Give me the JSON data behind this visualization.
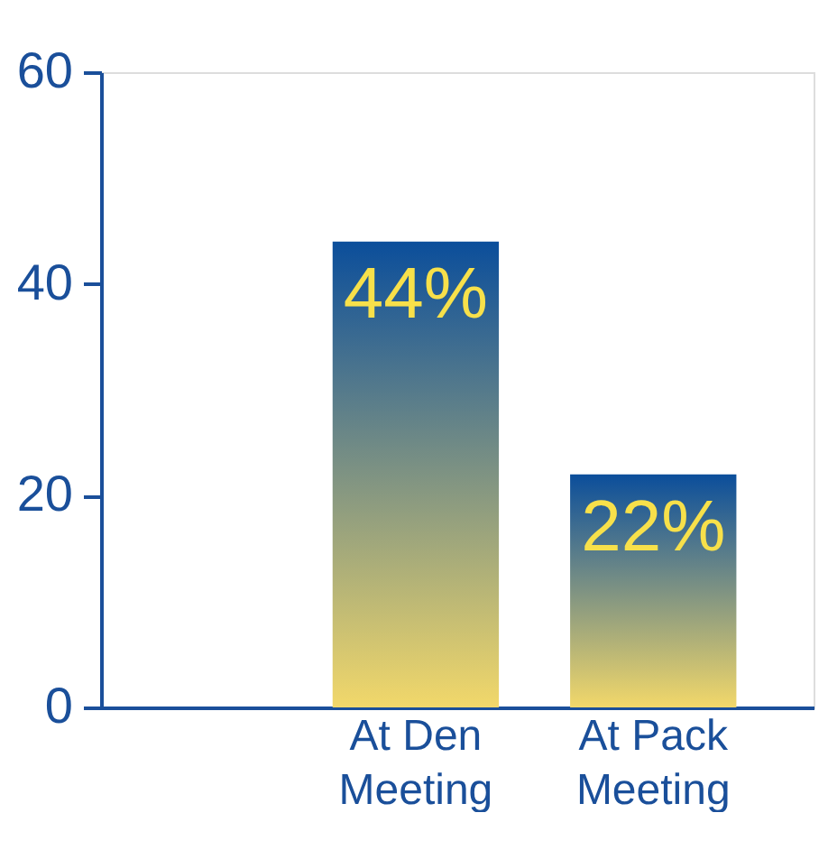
{
  "chart_data": {
    "type": "bar",
    "categories": [
      "At Den Meeting",
      "At Pack Meeting"
    ],
    "values": [
      44,
      22
    ],
    "value_labels": [
      "44%",
      "22%"
    ],
    "color": "#0b4e9b",
    "ylim": [
      0,
      60
    ],
    "yticks": [
      0,
      20,
      40,
      60
    ],
    "grid": false
  }
}
